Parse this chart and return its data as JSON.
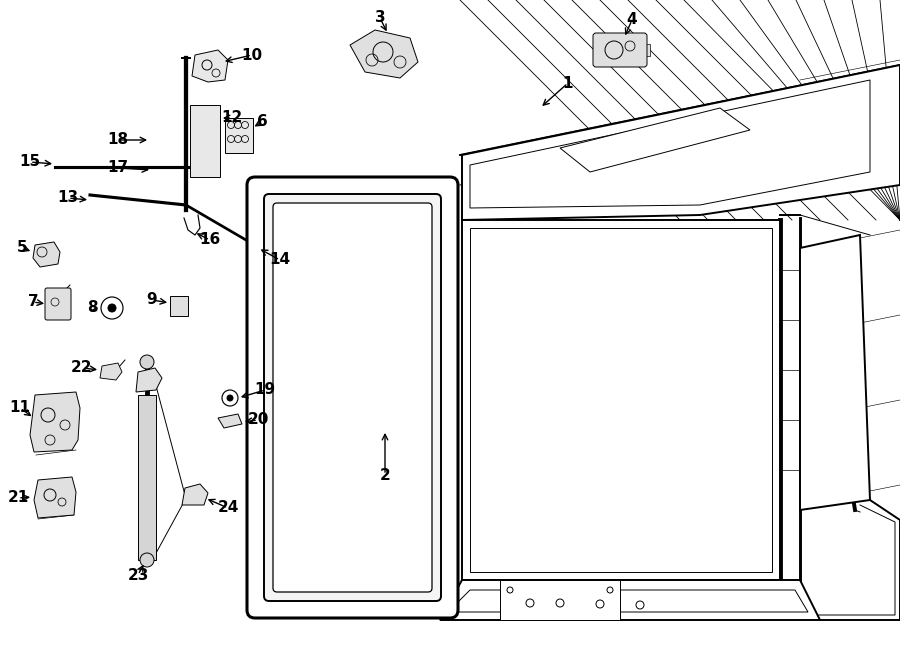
{
  "bg_color": "#ffffff",
  "line_color": "#000000",
  "fig_width": 9.0,
  "fig_height": 6.61,
  "dpi": 100,
  "lw_main": 1.4,
  "lw_thin": 0.7,
  "fs_label": 11
}
